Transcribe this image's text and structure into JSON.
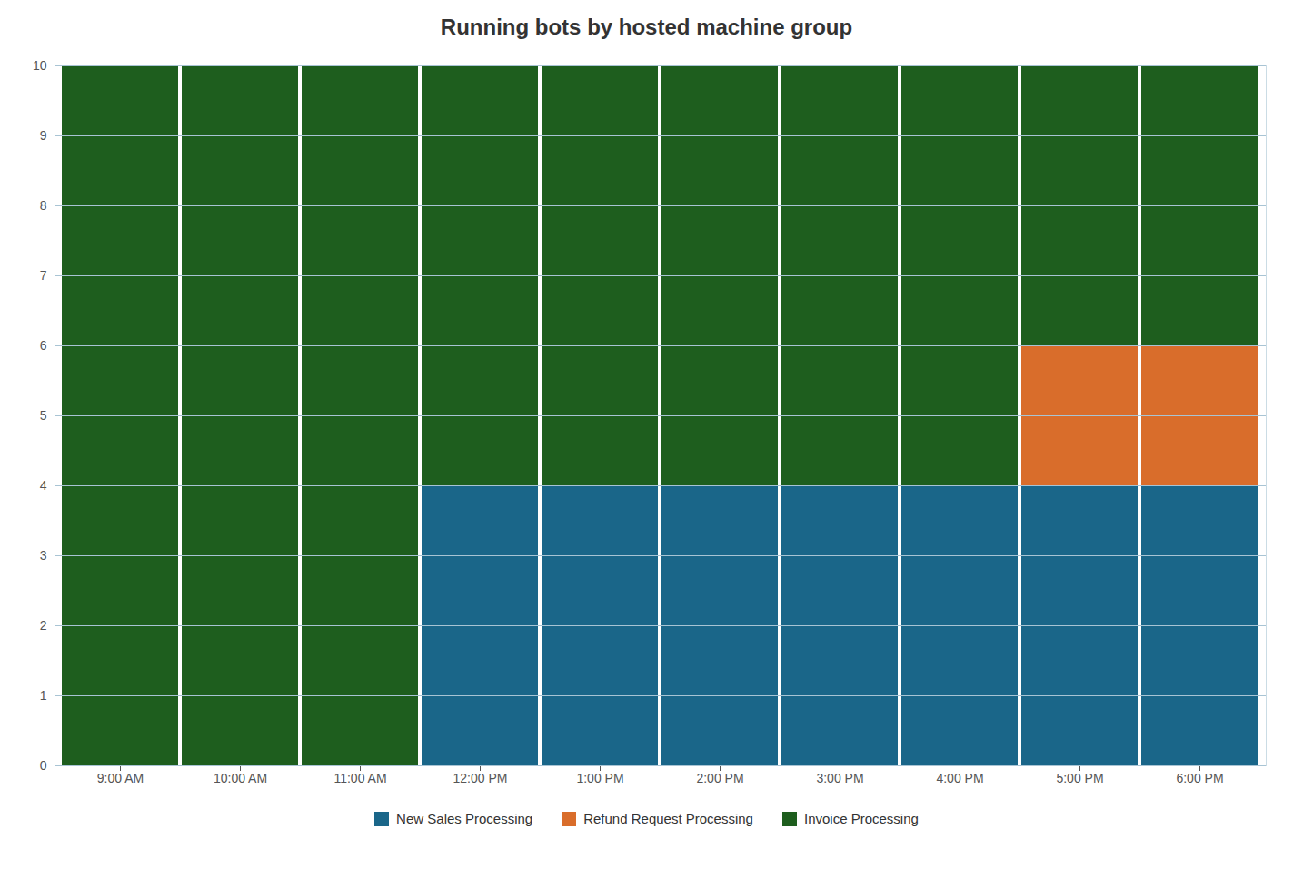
{
  "chart_data": {
    "type": "bar",
    "title": "Running bots by hosted machine group",
    "stacked": true,
    "categories": [
      "9:00 AM",
      "10:00 AM",
      "11:00 AM",
      "12:00 PM",
      "1:00 PM",
      "2:00 PM",
      "3:00 PM",
      "4:00 PM",
      "5:00 PM",
      "6:00 PM"
    ],
    "series": [
      {
        "name": "New Sales Processing",
        "color": "#1a6689",
        "values": [
          0,
          0,
          0,
          4,
          4,
          4,
          4,
          4,
          4,
          4
        ]
      },
      {
        "name": "Refund Request Processing",
        "color": "#d96d2b",
        "values": [
          0,
          0,
          0,
          0,
          0,
          0,
          0,
          0,
          2,
          2
        ]
      },
      {
        "name": "Invoice Processing",
        "color": "#1e5e1e",
        "values": [
          10,
          10,
          10,
          6,
          6,
          6,
          6,
          6,
          4,
          4
        ]
      }
    ],
    "ylim": [
      0,
      10
    ],
    "yticks": [
      0,
      1,
      2,
      3,
      4,
      5,
      6,
      7,
      8,
      9,
      10
    ],
    "grid": true,
    "legend": "bottom"
  }
}
